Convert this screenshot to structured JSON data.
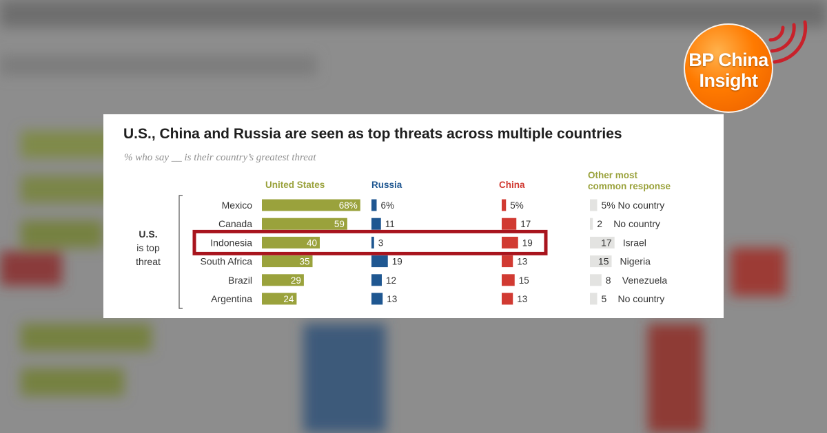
{
  "logo": {
    "text_line1": "BP China",
    "text_line2": "Insight",
    "icon": "broadcast-waves-icon",
    "color": "#ff7a00"
  },
  "colors": {
    "us": "#9aa23c",
    "russia": "#1f5791",
    "china": "#d13a32",
    "other": "#e3e3e1",
    "highlight_box": "#a8141d"
  },
  "chart_data": {
    "type": "bar",
    "title": "U.S., China and Russia are seen as top threats across multiple countries",
    "subtitle": "% who say __ is their country’s greatest threat",
    "group_label": [
      "U.S.",
      "is top",
      "threat"
    ],
    "categories": [
      "Mexico",
      "Canada",
      "Indonesia",
      "South Africa",
      "Brazil",
      "Argentina"
    ],
    "series": [
      {
        "name": "United States",
        "values": [
          68,
          59,
          40,
          35,
          29,
          24
        ],
        "labels": [
          "68%",
          "59",
          "40",
          "35",
          "29",
          "24"
        ]
      },
      {
        "name": "Russia",
        "values": [
          6,
          11,
          3,
          19,
          12,
          13
        ],
        "labels": [
          "6%",
          "11",
          "3",
          "19",
          "12",
          "13"
        ]
      },
      {
        "name": "China",
        "values": [
          5,
          17,
          19,
          13,
          15,
          13
        ],
        "labels": [
          "5%",
          "17",
          "19",
          "13",
          "15",
          "13"
        ]
      }
    ],
    "other_header": [
      "Other most",
      "common response"
    ],
    "other_response": [
      {
        "value": 5,
        "label": "5%",
        "name": "No country"
      },
      {
        "value": 2,
        "label": "2",
        "name": "No country"
      },
      {
        "value": 17,
        "label": "17",
        "name": "Israel"
      },
      {
        "value": 15,
        "label": "15",
        "name": "Nigeria"
      },
      {
        "value": 8,
        "label": "8",
        "name": "Venezuela"
      },
      {
        "value": 5,
        "label": "5",
        "name": "No country"
      }
    ],
    "highlighted_category": "Indonesia"
  }
}
